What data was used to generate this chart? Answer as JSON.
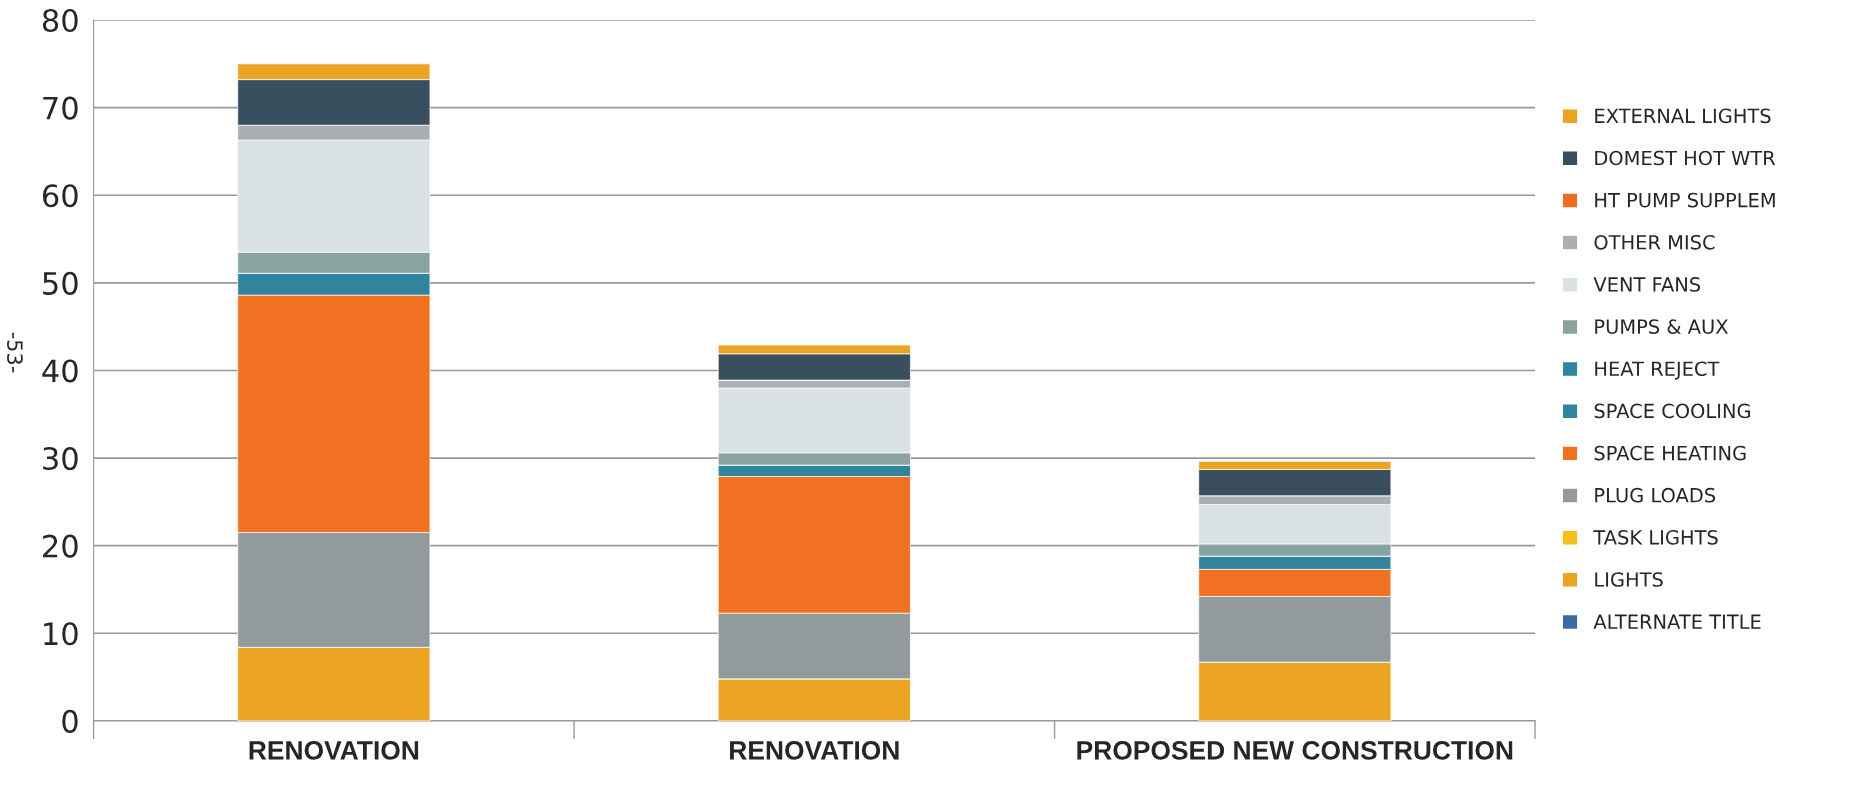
{
  "chart_data": {
    "type": "bar",
    "stacked": true,
    "categories": [
      "RENOVATION",
      "RENOVATION",
      "PROPOSED NEW CONSTRUCTION"
    ],
    "ylim": [
      0,
      80
    ],
    "yticks": [
      0,
      10,
      20,
      30,
      40,
      50,
      60,
      70,
      80
    ],
    "grid": "y",
    "legend": "right",
    "annotations": [
      "-53-"
    ],
    "series": [
      {
        "name": "ALTERNATE TITLE",
        "color": "#3b6ba5",
        "values": [
          0,
          0,
          0
        ]
      },
      {
        "name": "LIGHTS",
        "color": "#eba422",
        "values": [
          8.4,
          4.8,
          6.7
        ]
      },
      {
        "name": "TASK LIGHTS",
        "color": "#f5c018",
        "values": [
          0,
          0,
          0
        ]
      },
      {
        "name": "PLUG LOADS",
        "color": "#929a9c",
        "values": [
          13.1,
          7.5,
          7.5
        ]
      },
      {
        "name": "SPACE HEATING",
        "color": "#f07122",
        "values": [
          27.1,
          15.6,
          3.1
        ]
      },
      {
        "name": "SPACE COOLING",
        "color": "#30849e",
        "values": [
          2.5,
          1.3,
          1.5
        ]
      },
      {
        "name": "HEAT REJECT",
        "color": "#2f86a0",
        "values": [
          0,
          0,
          0
        ]
      },
      {
        "name": "PUMPS & AUX",
        "color": "#88a3a0",
        "values": [
          2.4,
          1.4,
          1.4
        ]
      },
      {
        "name": "VENT FANS",
        "color": "#d9e1e4",
        "values": [
          12.8,
          7.4,
          4.5
        ]
      },
      {
        "name": "OTHER MISC",
        "color": "#a9afb4",
        "values": [
          1.7,
          0.9,
          1.0
        ]
      },
      {
        "name": "HT PUMP SUPPLEM",
        "color": "#f06b22",
        "values": [
          0,
          0,
          0
        ]
      },
      {
        "name": "DOMEST HOT WTR",
        "color": "#3a4f5e",
        "values": [
          5.2,
          3.0,
          3.0
        ]
      },
      {
        "name": "EXTERNAL LIGHTS",
        "color": "#eba422",
        "values": [
          1.8,
          1.0,
          0.9
        ]
      }
    ]
  }
}
